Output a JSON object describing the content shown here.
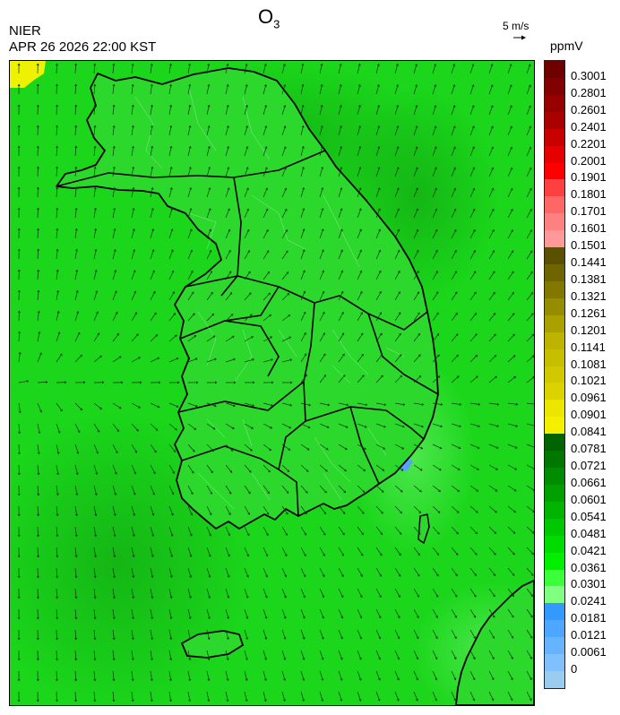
{
  "header": {
    "title": "O",
    "title_subscript": "3",
    "agency": "NIER",
    "datetime": "APR 26 2026 22:00 KST",
    "vector_reference": "5 m/s",
    "unit": "ppmV"
  },
  "legend": {
    "labels": [
      "0.3001",
      "0.2801",
      "0.2601",
      "0.2401",
      "0.2201",
      "0.2001",
      "0.1901",
      "0.1801",
      "0.1701",
      "0.1601",
      "0.1501",
      "0.1441",
      "0.1381",
      "0.1321",
      "0.1261",
      "0.1201",
      "0.1141",
      "0.1081",
      "0.1021",
      "0.0961",
      "0.0901",
      "0.0841",
      "0.0781",
      "0.0721",
      "0.0661",
      "0.0601",
      "0.0541",
      "0.0481",
      "0.0421",
      "0.0361",
      "0.0301",
      "0.0241",
      "0.0181",
      "0.0121",
      "0.0061",
      "0"
    ],
    "colors": [
      "#6e0000",
      "#820000",
      "#960000",
      "#aa0000",
      "#c80000",
      "#e60000",
      "#ff0000",
      "#ff4040",
      "#ff6666",
      "#ff8080",
      "#ff9999",
      "#5a5000",
      "#6e6400",
      "#827800",
      "#968c00",
      "#aaa000",
      "#beb400",
      "#c8be00",
      "#d2c800",
      "#dcd200",
      "#ece500",
      "#f5f000",
      "#006400",
      "#007800",
      "#008c00",
      "#00a000",
      "#00b400",
      "#00c800",
      "#00dc00",
      "#00f000",
      "#3cff3c",
      "#80ff80",
      "#3399ff",
      "#4da6ff",
      "#66b3ff",
      "#80c0ff",
      "#99ccee"
    ]
  },
  "map": {
    "background_color": "#1bd61b",
    "high_ozone_color": "#eef200",
    "low_ozone_color": "#5aa0ff",
    "coast_color": "#000000",
    "wind_arrow_color": "#0a3a0a"
  }
}
